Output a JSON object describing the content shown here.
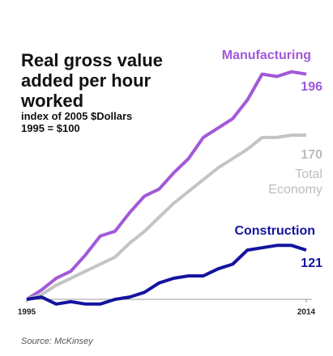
{
  "chart_data": {
    "type": "line",
    "title": "Real gross value added per hour worked",
    "subtitle": "index of 2005 $Dollars",
    "note": "1995 = $100",
    "source": "Source: McKinsey",
    "x": [
      1995,
      1996,
      1997,
      1998,
      1999,
      2000,
      2001,
      2002,
      2003,
      2004,
      2005,
      2006,
      2007,
      2008,
      2009,
      2010,
      2011,
      2012,
      2013,
      2014
    ],
    "xlim": [
      1995,
      2014
    ],
    "xticks": [
      1995,
      2014
    ],
    "ylim": [
      100,
      200
    ],
    "series": [
      {
        "name": "Manufacturing",
        "color": "#a259d9",
        "values": [
          100,
          104,
          109,
          112,
          119,
          127,
          129,
          137,
          144,
          147,
          154,
          160,
          169,
          173,
          177,
          185,
          196,
          195,
          197,
          196
        ]
      },
      {
        "name": "Total Economy",
        "color": "#c4c4c4",
        "values": [
          100,
          102,
          106,
          109,
          112,
          115,
          118,
          124,
          129,
          135,
          141,
          146,
          151,
          156,
          160,
          164,
          169,
          169,
          170,
          170
        ]
      },
      {
        "name": "Construction",
        "color": "#1414a0",
        "values": [
          100,
          101,
          98,
          99,
          98,
          98,
          100,
          101,
          103,
          107,
          109,
          110,
          110,
          113,
          115,
          121,
          122,
          123,
          123,
          121
        ]
      }
    ]
  }
}
